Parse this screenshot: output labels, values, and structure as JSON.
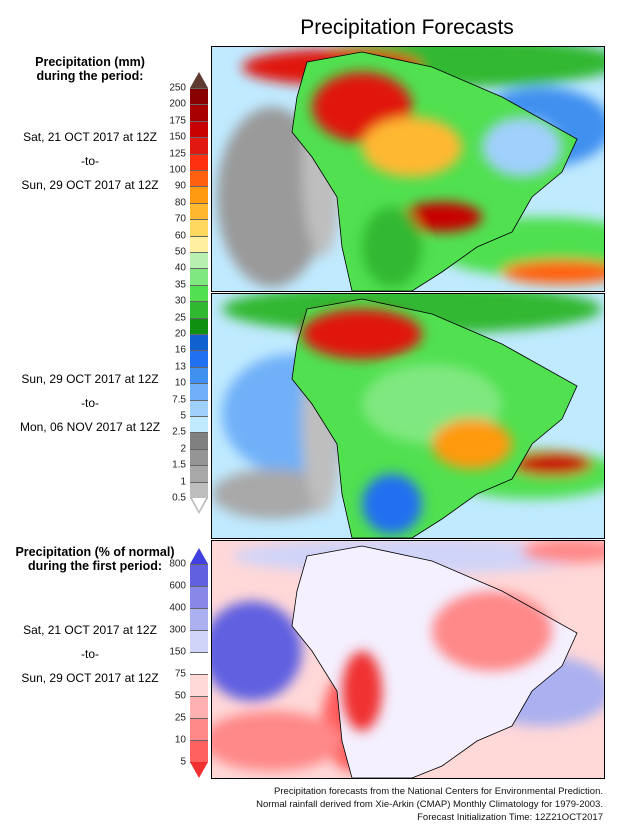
{
  "title": "Precipitation Forecasts",
  "left": {
    "header1": [
      "Precipitation (mm)",
      "during the period:"
    ],
    "period1": {
      "start": "Sat, 21 OCT 2017 at 12Z",
      "sep": "-to-",
      "end": "Sun, 29 OCT 2017 at 12Z"
    },
    "period2": {
      "start": "Sun, 29 OCT 2017 at 12Z",
      "sep": "-to-",
      "end": "Mon, 06 NOV 2017 at 12Z"
    },
    "header2": [
      "Precipitation (% of normal)",
      "during the first period:"
    ],
    "period3": {
      "start": "Sat, 21 OCT 2017 at 12Z",
      "sep": "-to-",
      "end": "Sun, 29 OCT 2017 at 12Z"
    }
  },
  "colorbar_mm": {
    "labels": [
      "250",
      "200",
      "175",
      "150",
      "125",
      "100",
      "90",
      "80",
      "70",
      "60",
      "50",
      "40",
      "35",
      "30",
      "25",
      "20",
      "16",
      "13",
      "10",
      "7.5",
      "5",
      "2.5",
      "2",
      "1.5",
      "1",
      "0.5"
    ],
    "colors": [
      "#5e3a30",
      "#8a0000",
      "#a80000",
      "#c80000",
      "#e01810",
      "#ff3010",
      "#ff6010",
      "#ff9a10",
      "#ffb830",
      "#ffd860",
      "#fff0a0",
      "#b8f0b0",
      "#80e880",
      "#50e050",
      "#30b830",
      "#109010",
      "#1060d0",
      "#2070f0",
      "#4090f0",
      "#70b0f8",
      "#a0d0fc",
      "#c0eaff",
      "#808080",
      "#959595",
      "#a8a8a8",
      "#bebebe",
      "#ffffff"
    ]
  },
  "colorbar_pct": {
    "labels": [
      "800",
      "600",
      "400",
      "300",
      "150",
      "75",
      "50",
      "25",
      "10",
      "5"
    ],
    "colors": [
      "#4040e0",
      "#6060e0",
      "#8888e8",
      "#aab0f0",
      "#d0d4f8",
      "#ffffff",
      "#ffd8d8",
      "#ffb0b0",
      "#ff8888",
      "#ff6060",
      "#f03030"
    ]
  },
  "footer": [
    "Precipitation forecasts from the National Centers for Environmental Prediction.",
    "Normal rainfall derived from Xie-Arkin (CMAP) Monthly Climatology for 1979-2003.",
    "Forecast Initialization Time: 12Z21OCT2017"
  ]
}
